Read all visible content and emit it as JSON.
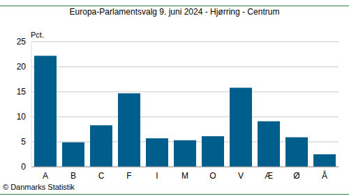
{
  "chart_data": {
    "type": "bar",
    "title": "Europa-Parlamentsvalg 9. juni 2024 - Hjørring - Centrum",
    "y_label": "Pct.",
    "source": "© Danmarks Statistik",
    "categories": [
      "A",
      "B",
      "C",
      "F",
      "I",
      "M",
      "O",
      "V",
      "Æ",
      "Ø",
      "Å"
    ],
    "values": [
      22.2,
      4.9,
      8.3,
      14.7,
      5.7,
      5.3,
      6.1,
      15.8,
      9.1,
      5.9,
      2.5
    ],
    "color": "#005e8c",
    "ylim": [
      0,
      25
    ],
    "yticks": [
      0,
      5,
      10,
      15,
      20,
      25
    ],
    "grid": true
  }
}
